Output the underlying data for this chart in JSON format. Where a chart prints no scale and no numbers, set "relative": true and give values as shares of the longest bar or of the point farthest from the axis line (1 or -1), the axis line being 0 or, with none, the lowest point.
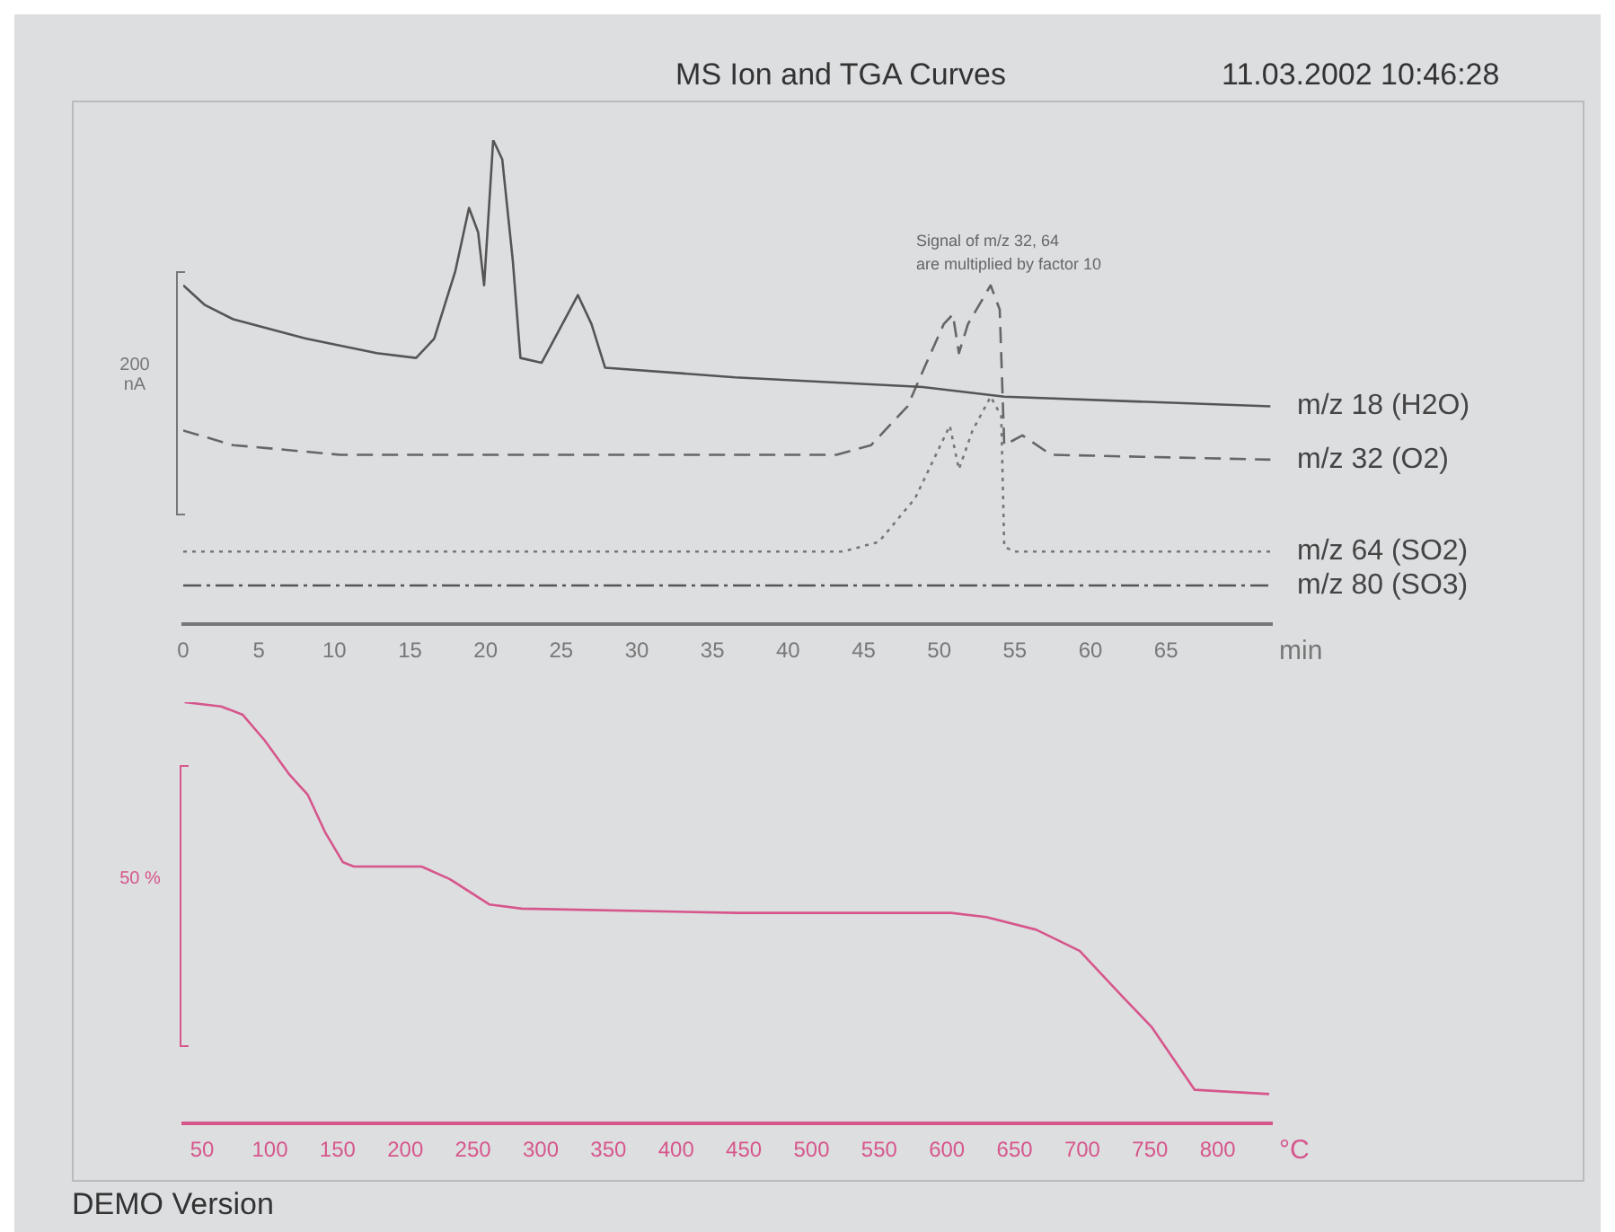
{
  "chart_data": [
    {
      "type": "line",
      "title": "MS Ion and TGA Curves",
      "ylabel": "200 nA",
      "xlabel": "min",
      "relative": true,
      "xlim": [
        0,
        72
      ],
      "xticks": [
        0,
        5,
        10,
        15,
        20,
        25,
        30,
        35,
        40,
        45,
        50,
        55,
        60,
        65
      ],
      "grid": false,
      "legend": false,
      "marker": "none",
      "annotations": [
        "11.03.2002 10:46:28",
        "Signal of m/z 32, 64",
        "are multiplied by factor 10"
      ],
      "series": [
        {
          "name": "m/z 18 (H2O)",
          "color": "#555555",
          "line_style": "solid",
          "x": [
            0,
            1.4,
            3.3,
            8.1,
            12.8,
            15.4,
            16.6,
            18.0,
            18.9,
            19.5,
            19.9,
            20.5,
            21.1,
            21.8,
            22.3,
            23.7,
            24.9,
            26.1,
            27.0,
            27.9,
            36.5,
            48.9,
            54.3,
            71.9
          ],
          "values": [
            0.7,
            0.66,
            0.63,
            0.59,
            0.56,
            0.55,
            0.59,
            0.73,
            0.86,
            0.81,
            0.7,
            1.0,
            0.96,
            0.75,
            0.55,
            0.54,
            0.61,
            0.68,
            0.62,
            0.53,
            0.51,
            0.49,
            0.47,
            0.45
          ]
        },
        {
          "name": "m/z 32 (O2)",
          "color": "#666666",
          "line_style": "dashed",
          "x": [
            0,
            3.3,
            10.4,
            22.3,
            43.2,
            45.5,
            47.9,
            49.3,
            50.3,
            50.9,
            51.3,
            51.9,
            53.4,
            54.0,
            54.3,
            55.5,
            57.4,
            71.9
          ],
          "values": [
            0.4,
            0.37,
            0.35,
            0.35,
            0.35,
            0.37,
            0.45,
            0.55,
            0.62,
            0.64,
            0.56,
            0.62,
            0.7,
            0.65,
            0.37,
            0.39,
            0.35,
            0.34
          ]
        },
        {
          "name": "m/z 64 (SO2)",
          "color": "#777777",
          "line_style": "dotted",
          "x": [
            0,
            43.6,
            46.0,
            48.4,
            50.7,
            51.3,
            52.2,
            53.4,
            54.1,
            54.3,
            55.0,
            71.9
          ],
          "values": [
            0.15,
            0.15,
            0.17,
            0.26,
            0.41,
            0.32,
            0.4,
            0.47,
            0.43,
            0.16,
            0.15,
            0.15
          ]
        },
        {
          "name": "m/z 80 (SO3)",
          "color": "#555555",
          "line_style": "dashdot",
          "x": [
            0,
            71.9
          ],
          "values": [
            0.08,
            0.08
          ]
        }
      ]
    },
    {
      "type": "line",
      "ylabel": "50 %",
      "xlabel": "°C",
      "relative": true,
      "xlim": [
        36,
        840
      ],
      "xticks": [
        50,
        100,
        150,
        200,
        250,
        300,
        350,
        400,
        450,
        500,
        550,
        600,
        650,
        700,
        750,
        800
      ],
      "grid": false,
      "legend": false,
      "marker": "none",
      "annotations": [
        "DEMO Version"
      ],
      "series": [
        {
          "color": "#d6568c",
          "line_style": "solid",
          "x": [
            37,
            64,
            80,
            96,
            114,
            128,
            141,
            154,
            162,
            212,
            233,
            262,
            286,
            445,
            603,
            629,
            666,
            698,
            730,
            751,
            783,
            838
          ],
          "values": [
            1.0,
            0.99,
            0.97,
            0.91,
            0.83,
            0.78,
            0.69,
            0.62,
            0.61,
            0.61,
            0.58,
            0.52,
            0.51,
            0.5,
            0.5,
            0.49,
            0.46,
            0.41,
            0.3,
            0.23,
            0.08,
            0.07
          ]
        }
      ]
    }
  ]
}
